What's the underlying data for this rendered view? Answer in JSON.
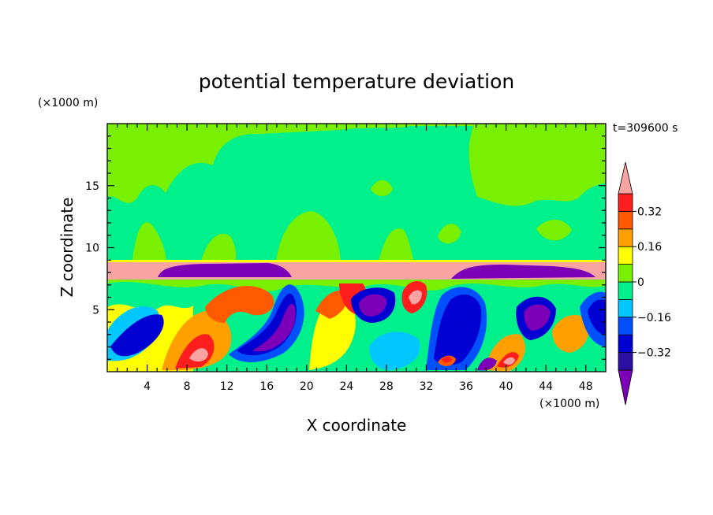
{
  "chart_data": {
    "type": "heatmap",
    "title": "potential temperature deviation",
    "xlabel": "X coordinate",
    "ylabel": "Z coordinate",
    "x_unit": "(×1000 m)",
    "y_unit": "(×1000 m)",
    "time_label": "t=309600 s",
    "xlim": [
      0,
      50
    ],
    "ylim": [
      0,
      20
    ],
    "x_ticks": [
      4,
      8,
      12,
      16,
      20,
      24,
      28,
      32,
      36,
      40,
      44,
      48
    ],
    "y_ticks": [
      5,
      10,
      15
    ],
    "colorbar": {
      "levels": [
        -0.4,
        -0.32,
        -0.24,
        -0.16,
        -0.08,
        0,
        0.08,
        0.16,
        0.24,
        0.32,
        0.4
      ],
      "tick_values": [
        0.32,
        0.16,
        0,
        -0.16,
        -0.32
      ],
      "tick_labels": [
        "0.32",
        "0.16",
        "0",
        "−0.16",
        "−0.32"
      ],
      "colors": [
        "#2a0fa0",
        "#0000d2",
        "#0050ff",
        "#00c8ff",
        "#00f08c",
        "#78f000",
        "#ffff00",
        "#ffa000",
        "#ff5a00",
        "#ff1e1e"
      ],
      "under_color": "#7b00b8",
      "over_color": "#f9a3a3",
      "extend": "both"
    },
    "regions": {
      "upper_band_value_range": [
        -0.08,
        0.08
      ],
      "inversion_layer_z": [
        7.5,
        8.8
      ],
      "inversion_layer_value": "above 0.4",
      "lower_turbulent_layer_z": [
        0,
        7.5
      ]
    }
  }
}
